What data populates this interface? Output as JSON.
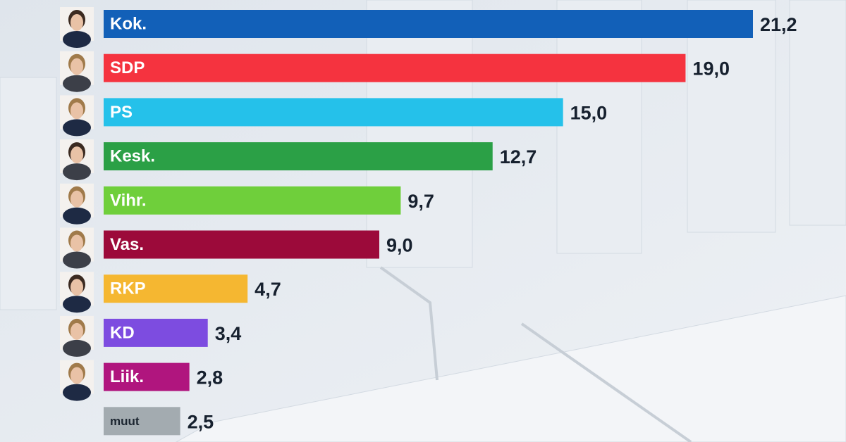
{
  "chart_data": {
    "type": "bar",
    "orientation": "horizontal",
    "categories": [
      "Kok.",
      "SDP",
      "PS",
      "Kesk.",
      "Vihr.",
      "Vas.",
      "RKP",
      "KD",
      "Liik.",
      "muut"
    ],
    "values": [
      21.2,
      19.0,
      15.0,
      12.7,
      9.7,
      9.0,
      4.7,
      3.4,
      2.8,
      2.5
    ],
    "value_labels": [
      "21,2",
      "19,0",
      "15,0",
      "12,7",
      "9,7",
      "9,0",
      "4,7",
      "3,4",
      "2,8",
      "2,5"
    ],
    "colors": [
      "#1260b8",
      "#f5333f",
      "#25c1ea",
      "#2ba046",
      "#6fcf3b",
      "#9c0a3a",
      "#f5b731",
      "#7d4ce0",
      "#b0157e",
      "#a3abb0"
    ],
    "label_colors": [
      "#ffffff",
      "#ffffff",
      "#ffffff",
      "#ffffff",
      "#ffffff",
      "#ffffff",
      "#ffffff",
      "#ffffff",
      "#ffffff",
      "#1c2530"
    ]
  }
}
